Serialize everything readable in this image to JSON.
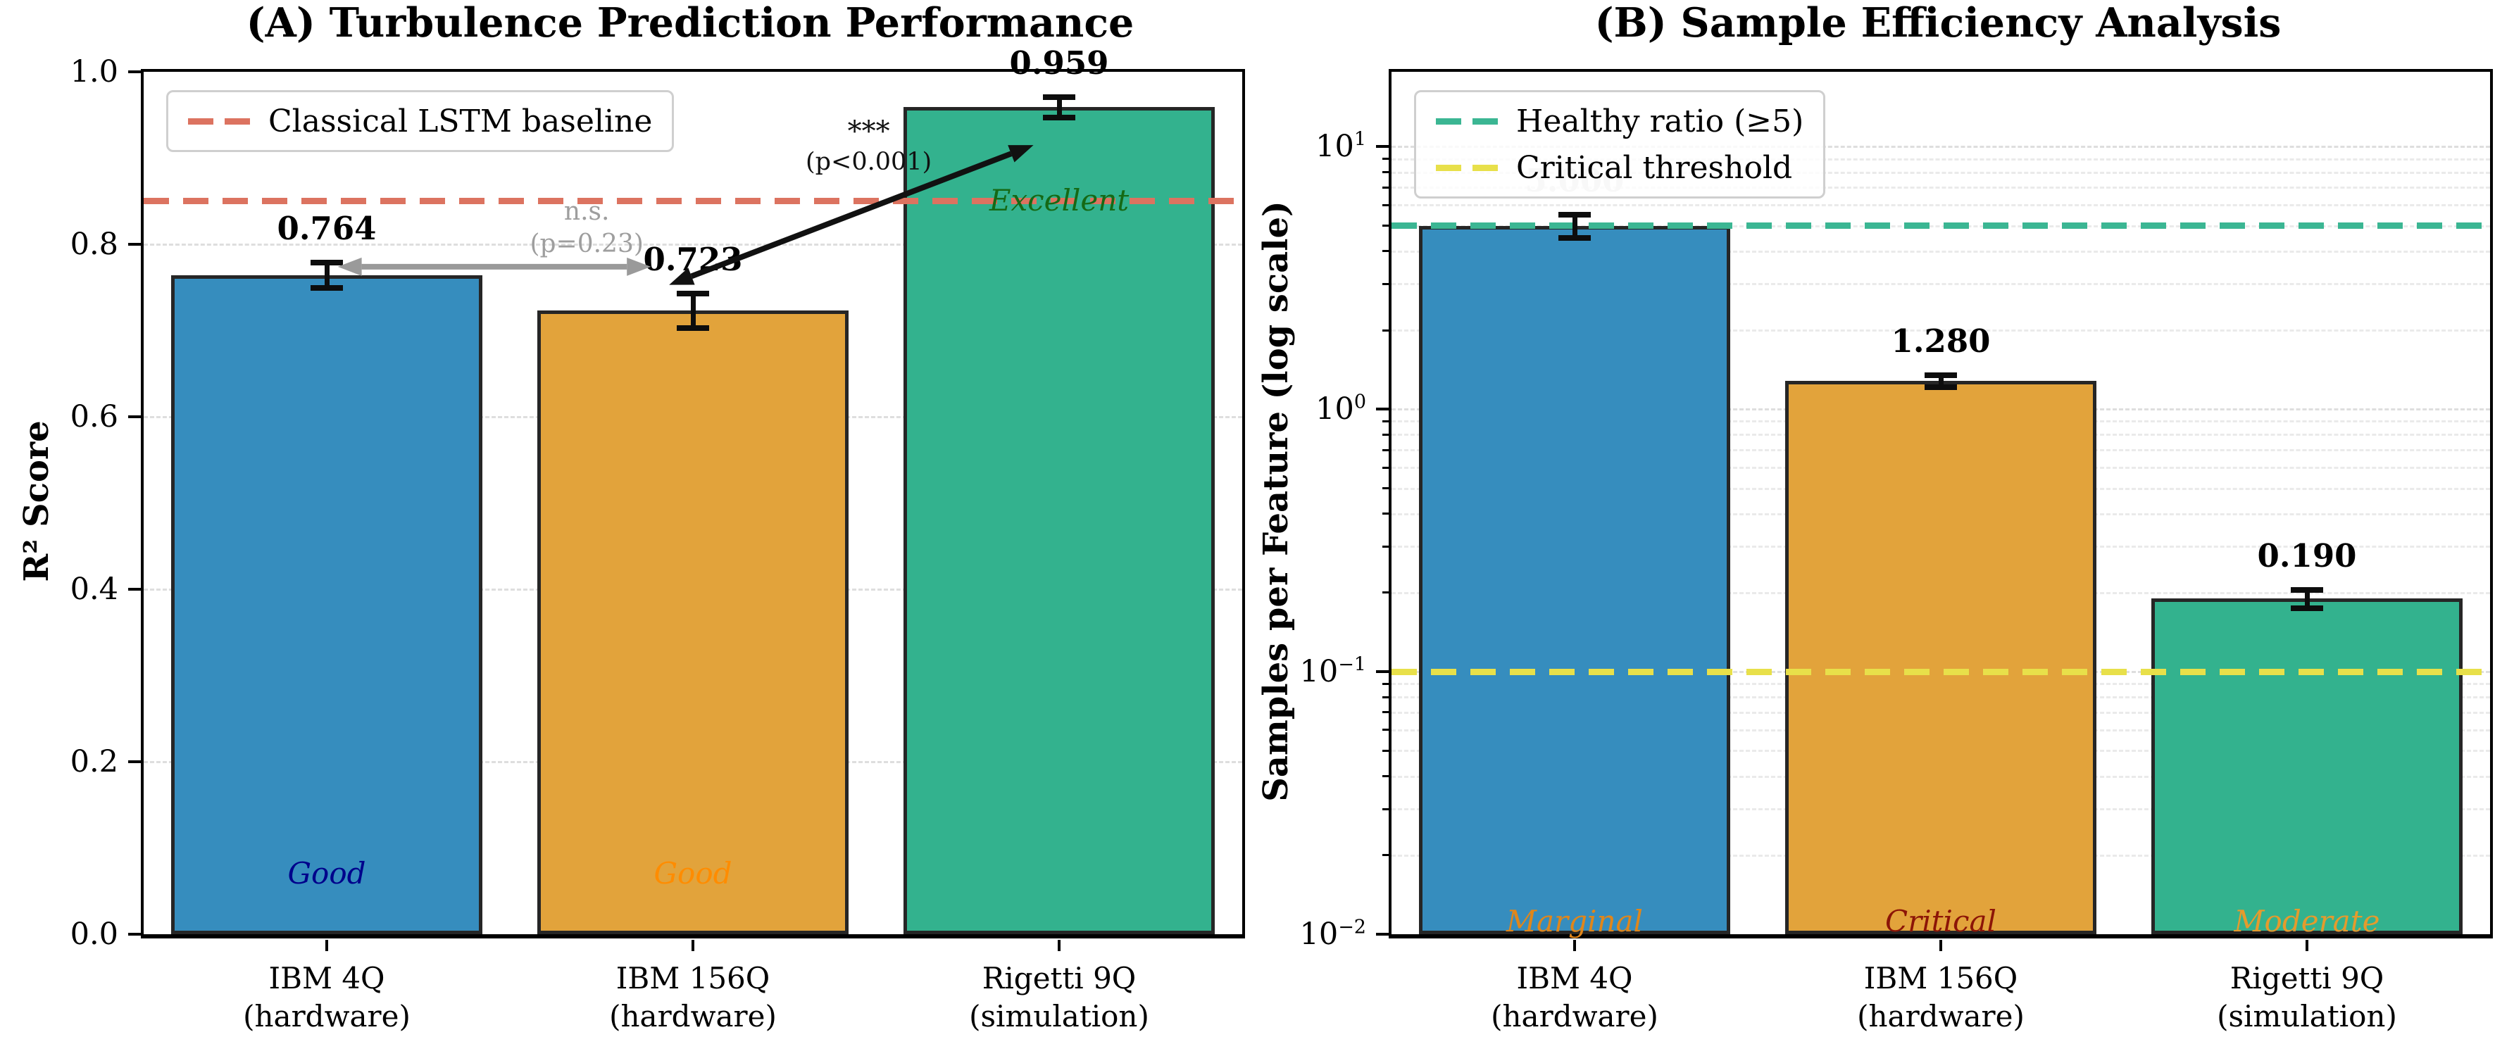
{
  "figure": {
    "background": "#ffffff"
  },
  "chart_data": [
    {
      "id": "A",
      "type": "bar",
      "title": "(A) Turbulence Prediction Performance",
      "ylabel": "R² Score",
      "yscale": "linear",
      "ylim": [
        0.0,
        1.0
      ],
      "grid": "horizontal-dashed",
      "legend_position": "upper-left",
      "yticks": [
        {
          "v": 0.0,
          "label": "0.0"
        },
        {
          "v": 0.2,
          "label": "0.2"
        },
        {
          "v": 0.4,
          "label": "0.4"
        },
        {
          "v": 0.6,
          "label": "0.6"
        },
        {
          "v": 0.8,
          "label": "0.8"
        },
        {
          "v": 1.0,
          "label": "1.0"
        }
      ],
      "categories": [
        [
          "IBM 4Q",
          "(hardware)"
        ],
        [
          "IBM 156Q",
          "(hardware)"
        ],
        [
          "Rigetti 9Q",
          "(simulation)"
        ]
      ],
      "values": [
        0.764,
        0.723,
        0.959
      ],
      "errors": [
        0.015,
        0.02,
        0.012
      ],
      "value_labels": [
        "0.764",
        "0.723",
        "0.959"
      ],
      "value_label_colors": [
        "#000000",
        "#000000",
        "#000000"
      ],
      "bar_colors": [
        "#368dbe",
        "#e2a33b",
        "#33b28e"
      ],
      "bar_edge_color": "#262626",
      "bar_tags": [
        {
          "text": "Good",
          "color": "#00008b",
          "y": 0.07
        },
        {
          "text": "Good",
          "color": "#ff8c00",
          "y": 0.07
        },
        {
          "text": "Excellent",
          "color": "#156915",
          "y": 0.851
        }
      ],
      "ref_lines": [
        {
          "y": 0.85,
          "color": "#dc7360",
          "label": "Classical LSTM baseline"
        }
      ],
      "annotations": [
        {
          "kind": "ns",
          "lines": [
            "n.s.",
            "(p=0.23)"
          ],
          "color": "#9e9e9e",
          "x": 0.71,
          "y_top": 0.856
        },
        {
          "kind": "sig",
          "lines": [
            "***",
            "(p<0.001)"
          ],
          "color": "#111111",
          "x": 1.48,
          "y_top": 0.947
        }
      ],
      "arrows": [
        {
          "x1": 0.03,
          "y1": 0.774,
          "x2": 0.885,
          "y2": 0.774,
          "color": "#9a9a9a",
          "double": true
        },
        {
          "x1": 0.935,
          "y1": 0.753,
          "x2": 1.93,
          "y2": 0.915,
          "color": "#111111",
          "double": true
        }
      ]
    },
    {
      "id": "B",
      "type": "bar",
      "title": "(B) Sample Efficiency Analysis",
      "ylabel": "Samples per Feature (log scale)",
      "yscale": "log",
      "ylim": [
        0.01,
        19.3
      ],
      "grid": "horizontal-dashed-log-minor",
      "legend_position": "upper-left",
      "yticks": [
        {
          "v": 0.01,
          "label": "10^-2"
        },
        {
          "v": 0.1,
          "label": "10^-1"
        },
        {
          "v": 1,
          "label": "10^0"
        },
        {
          "v": 10,
          "label": "10^1"
        }
      ],
      "categories": [
        [
          "IBM 4Q",
          "(hardware)"
        ],
        [
          "IBM 156Q",
          "(hardware)"
        ],
        [
          "Rigetti 9Q",
          "(simulation)"
        ]
      ],
      "values": [
        5.0,
        1.28,
        0.19
      ],
      "errors": [
        0.5,
        0.07,
        0.015
      ],
      "value_labels": [
        "5.000",
        "1.280",
        "0.190"
      ],
      "value_label_colors": [
        "#d8d8d8",
        "#000000",
        "#000000"
      ],
      "bar_colors": [
        "#368dbe",
        "#e2a33b",
        "#33b28e"
      ],
      "bar_edge_color": "#262626",
      "bar_tags": [
        {
          "text": "Marginal",
          "color": "#e0861a",
          "y": 0.0112
        },
        {
          "text": "Critical",
          "color": "#8c1507",
          "y": 0.0112
        },
        {
          "text": "Moderate",
          "color": "#e49b2d",
          "y": 0.0112
        }
      ],
      "ref_lines": [
        {
          "y": 5,
          "color": "#3bb693",
          "label": "Healthy ratio (≥5)"
        },
        {
          "y": 0.1,
          "color": "#e8e04a",
          "label": "Critical threshold"
        }
      ],
      "annotations": [],
      "arrows": []
    }
  ]
}
